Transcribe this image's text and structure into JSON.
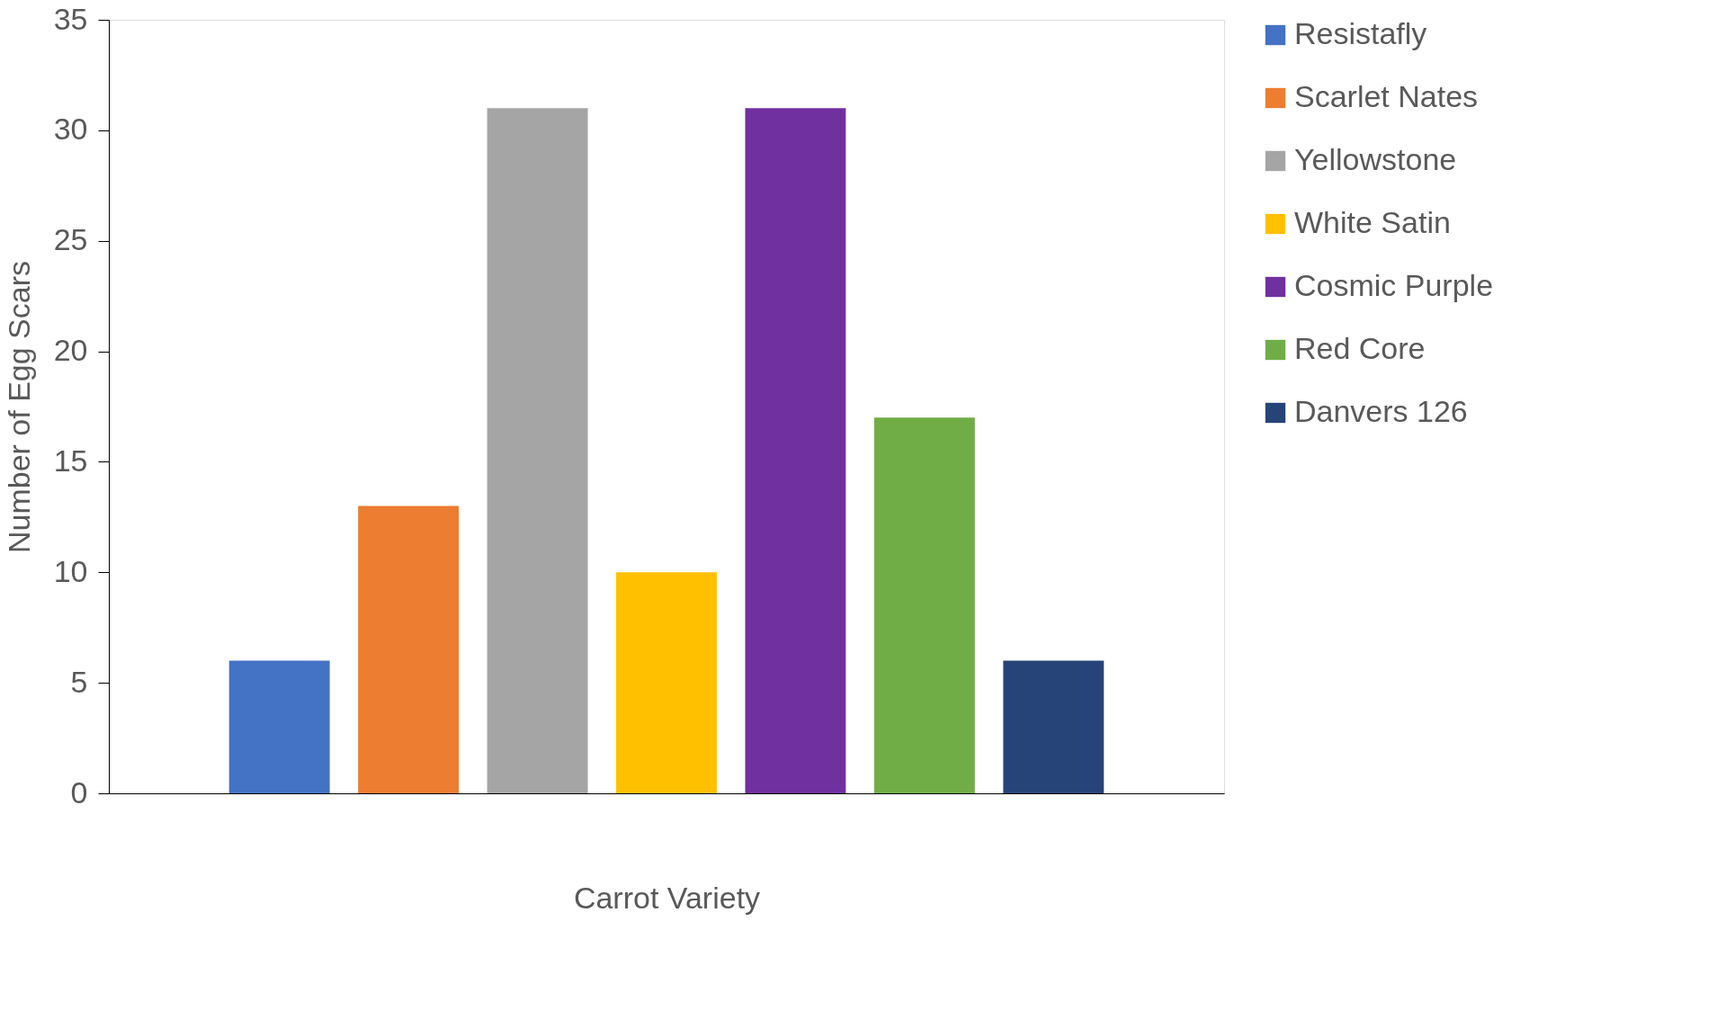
{
  "chart_data": {
    "type": "bar",
    "xlabel": "Carrot Variety",
    "ylabel": "Number of  Egg Scars",
    "categories": [
      null
    ],
    "series": [
      {
        "name": "Resistafly",
        "color": "#4472c4",
        "values": [
          6
        ]
      },
      {
        "name": "Scarlet Nates",
        "color": "#ed7d31",
        "values": [
          13
        ]
      },
      {
        "name": "Yellowstone",
        "color": "#a5a5a5",
        "values": [
          31
        ]
      },
      {
        "name": "White Satin",
        "color": "#ffc000",
        "values": [
          10
        ]
      },
      {
        "name": "Cosmic Purple",
        "color": "#7030a0",
        "values": [
          31
        ]
      },
      {
        "name": "Red Core",
        "color": "#70ad47",
        "values": [
          17
        ]
      },
      {
        "name": "Danvers 126",
        "color": "#264478",
        "values": [
          6
        ]
      }
    ],
    "ylim": [
      0,
      35
    ],
    "yticks": [
      0,
      5,
      10,
      15,
      20,
      25,
      30,
      35
    ],
    "grid": false,
    "legend": "right"
  }
}
